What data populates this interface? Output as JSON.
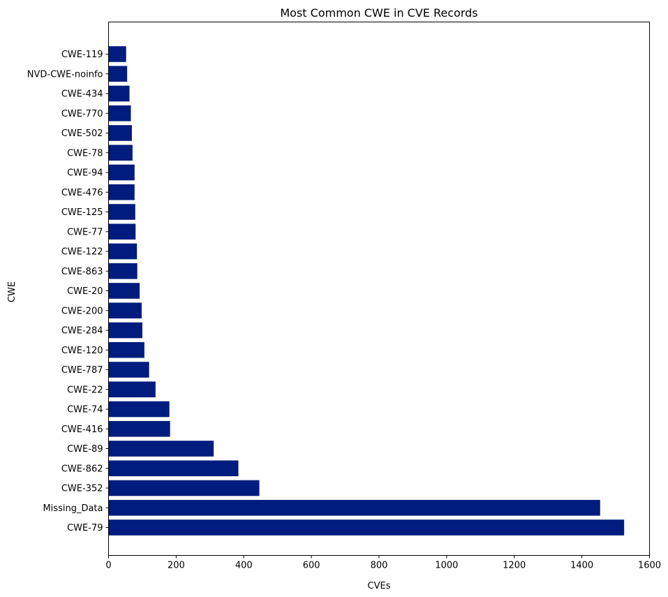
{
  "chart_data": {
    "type": "bar",
    "orientation": "horizontal",
    "title": "Most Common CWE in CVE Records",
    "xlabel": "CVEs",
    "ylabel": "CWE",
    "xlim": [
      0,
      1600
    ],
    "xticks": [
      "0",
      "200",
      "400",
      "600",
      "800",
      "1000",
      "1200",
      "1400",
      "1600"
    ],
    "bar_color": "#001c7f",
    "grid": false,
    "categories": [
      "CWE-79",
      "Missing_Data",
      "CWE-352",
      "CWE-862",
      "CWE-89",
      "CWE-416",
      "CWE-74",
      "CWE-22",
      "CWE-787",
      "CWE-120",
      "CWE-284",
      "CWE-200",
      "CWE-20",
      "CWE-863",
      "CWE-122",
      "CWE-77",
      "CWE-125",
      "CWE-476",
      "CWE-94",
      "CWE-78",
      "CWE-502",
      "CWE-770",
      "CWE-434",
      "NVD-CWE-noinfo",
      "CWE-119"
    ],
    "values": [
      1525,
      1454,
      446,
      384,
      311,
      182,
      180,
      139,
      120,
      106,
      100,
      98,
      92,
      85,
      84,
      80,
      79,
      77,
      77,
      71,
      69,
      66,
      62,
      55,
      52
    ]
  }
}
